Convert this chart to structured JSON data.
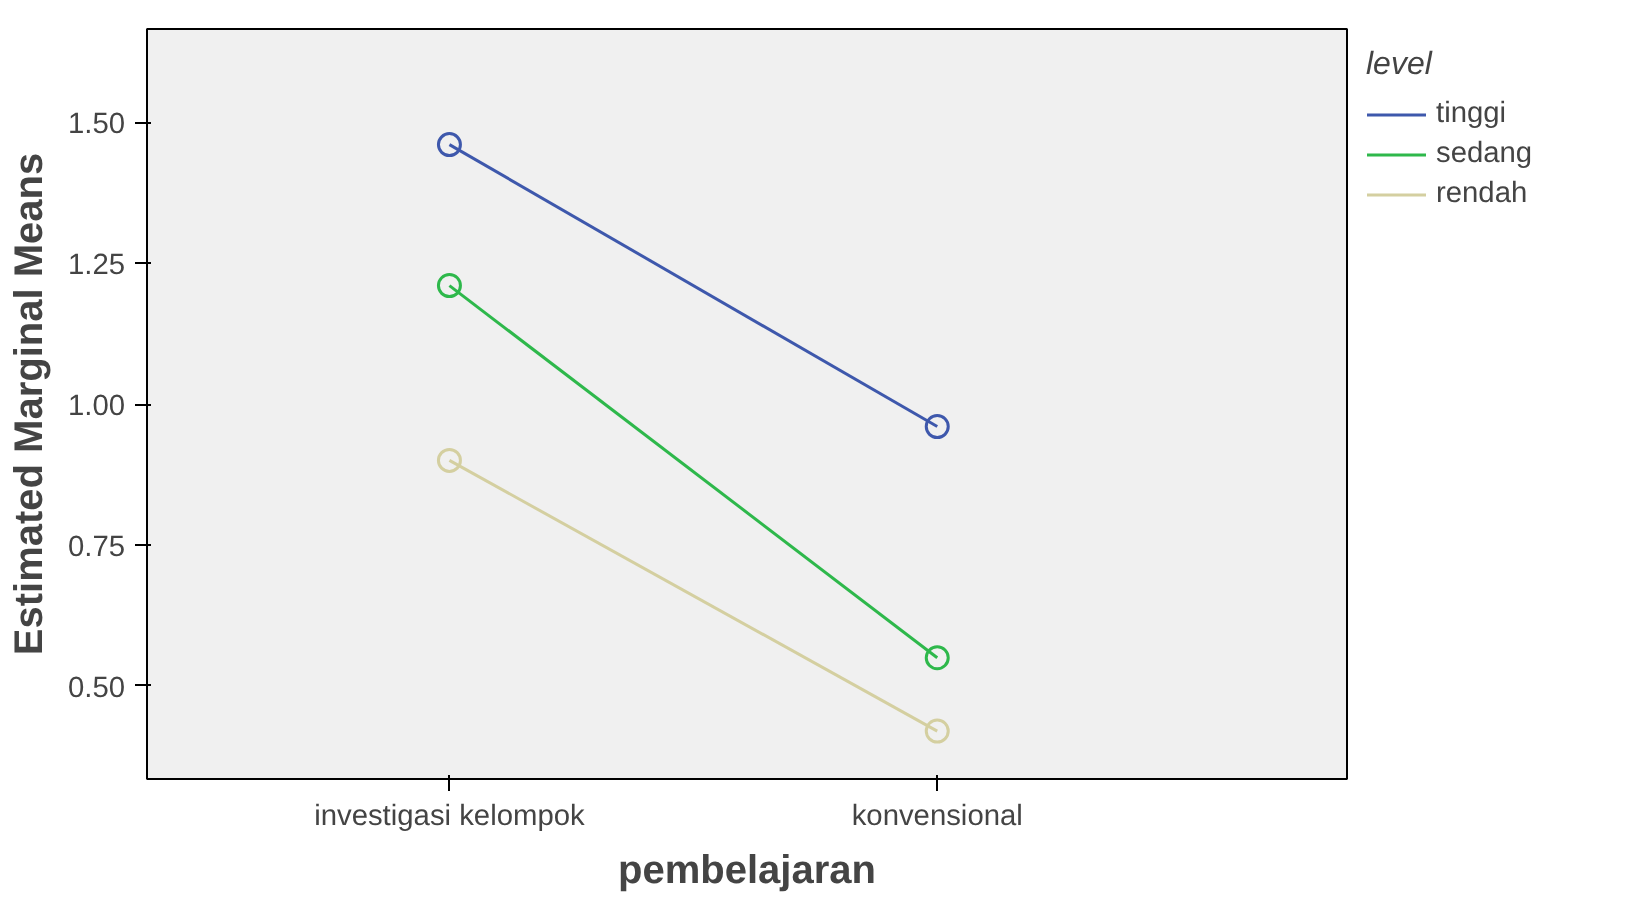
{
  "chart_data": {
    "type": "line",
    "xlabel": "pembelajaran",
    "ylabel": "Estimated Marginal Means",
    "legend_title": "level",
    "categories": [
      "investigasi kelompok",
      "konvensional"
    ],
    "series": [
      {
        "name": "tinggi",
        "color": "#3e58ac",
        "values": [
          1.46,
          0.96
        ]
      },
      {
        "name": "sedang",
        "color": "#2eb84b",
        "values": [
          1.21,
          0.55
        ]
      },
      {
        "name": "rendah",
        "color": "#d4cfa0",
        "values": [
          0.9,
          0.42
        ]
      }
    ],
    "ylim": [
      0.335,
      1.665
    ],
    "yticks": [
      {
        "value": 0.5,
        "label": "0.50"
      },
      {
        "value": 0.75,
        "label": "0.75"
      },
      {
        "value": 1.0,
        "label": "1.00"
      },
      {
        "value": 1.25,
        "label": "1.25"
      },
      {
        "value": 1.5,
        "label": "1.50"
      }
    ],
    "marker": "circle",
    "line_style": "solid",
    "grid": false,
    "legend": "top right"
  }
}
